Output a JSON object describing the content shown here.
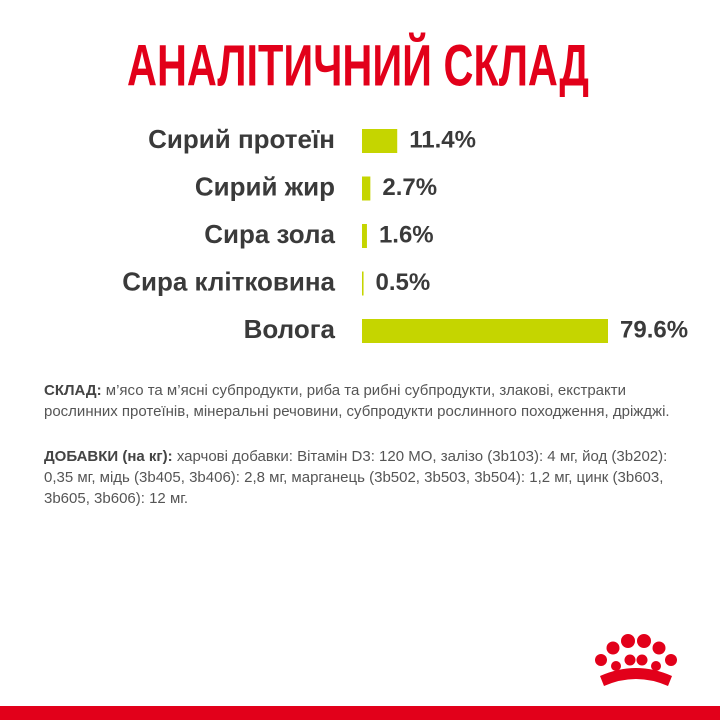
{
  "chart_data": {
    "type": "bar",
    "orientation": "horizontal",
    "title": "АНАЛІТИЧНИЙ СКЛАД",
    "categories": [
      "Сирий протеїн",
      "Сирий жир",
      "Сира зола",
      "Сира клітковина",
      "Вологa"
    ],
    "values": [
      11.4,
      2.7,
      1.6,
      0.5,
      79.6
    ],
    "value_labels": [
      "11.4%",
      "2.7%",
      "1.6%",
      "0.5%",
      "79.6%"
    ],
    "color": "#c5d500"
  },
  "composition": {
    "label": "СКЛАД:",
    "text": "м’ясо та м’ясні субпродукти, риба та рибні субпродукти, злакові, екстракти рослинних протеїнів, мінеральні речовини, субпродукти рослинного походження, дріжджі."
  },
  "additives": {
    "label": "ДОБАВКИ (на кг):",
    "text": "харчові добавки: Вітамін D3: 120 МО, залізо (3b103): 4 мг, йод (3b202): 0,35 мг, мідь (3b405, 3b406): 2,8 мг, марганець (3b502, 3b503, 3b504): 1,2 мг, цинк (3b603, 3b605, 3b606): 12 мг."
  }
}
